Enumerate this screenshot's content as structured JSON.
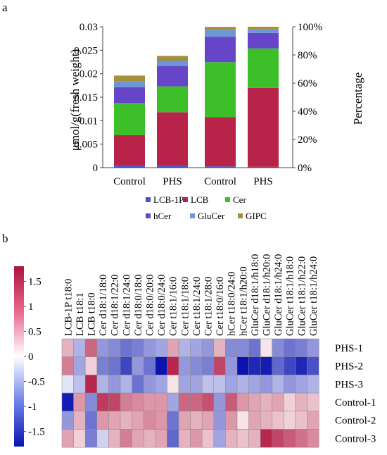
{
  "panel_labels": [
    "a",
    "b"
  ],
  "chart_data": [
    {
      "type": "bar",
      "stacked": true,
      "categories": [
        "Control",
        "PHS",
        "Control",
        "PHS"
      ],
      "ylabel": "μmol/g(fresh weight)",
      "ylabel_right": "Percentage",
      "ylim": [
        0,
        0.03
      ],
      "yticks": [
        "0",
        "0.005",
        "0.01",
        "0.015",
        "0.02",
        "0.025",
        "0.03"
      ],
      "yticks_right": [
        "0%",
        "20%",
        "40%",
        "60%",
        "80%",
        "100%"
      ],
      "axis_scale": {
        "left": "absolute (first pair)",
        "right": "percentage (second pair)"
      },
      "legend_position": "bottom",
      "series": [
        {
          "name": "LCB-1P",
          "color": "#4a52c4",
          "values": [
            0.0005,
            0.0005,
            0.9,
            0.6
          ]
        },
        {
          "name": "LCB",
          "color": "#b8234a",
          "values": [
            0.0064,
            0.0113,
            35.0,
            56.0
          ]
        },
        {
          "name": "Cer",
          "color": "#3dbf2a",
          "values": [
            0.0069,
            0.0055,
            39.0,
            28.0
          ]
        },
        {
          "name": "hCer",
          "color": "#6645c8",
          "values": [
            0.0033,
            0.0043,
            18.0,
            11.0
          ]
        },
        {
          "name": "GluCer",
          "color": "#6c96d4",
          "values": [
            0.0013,
            0.0012,
            5.0,
            2.5
          ]
        },
        {
          "name": "GIPC",
          "color": "#a58f3b",
          "values": [
            0.0012,
            0.001,
            2.0,
            1.9
          ]
        }
      ],
      "notes": "First two bars read on left axis; last two bars read on right (percentage) axis."
    },
    {
      "type": "heatmap",
      "columns": [
        "LCB-1P t18:0",
        "LCB t18:1",
        "LCB t18:0",
        "Cer d18:1/18:0",
        "Cer d18:1/22:0",
        "Cer d18:1/24:0",
        "Cer d18:0/18:0",
        "Cer d18:0/20:0",
        "Cer d18:0/24:0",
        "Cer t18:1/16:0",
        "Cer t18:1/18:0",
        "Cer t18:1/24:0",
        "Cer t18:1/28:0",
        "Cer t18:0/16:0",
        "hCer t18:0/24:0",
        "hCer t18:1/h20:0",
        "GluCer d18:1/h18:0",
        "GluCer d18:1/h20:0",
        "GluCer d18:1/h24:0",
        "GluCer t18:1/h18:0",
        "GluCer t18:1/h22:0",
        "GluCer t18:1/h24:0"
      ],
      "rows": [
        "PHS-1",
        "PHS-2",
        "PHS-3",
        "Control-1",
        "Control-2",
        "Control-3"
      ],
      "values": [
        [
          0.4,
          -0.4,
          1.0,
          -0.6,
          -0.7,
          -0.9,
          -0.8,
          -0.6,
          -0.5,
          0.5,
          -0.4,
          -0.5,
          -0.6,
          0.4,
          -0.7,
          -0.7,
          -0.9,
          0.1,
          -0.7,
          -0.9,
          -0.8,
          -0.6
        ],
        [
          0.8,
          -0.5,
          0.2,
          -0.8,
          -0.9,
          -1.3,
          -0.6,
          -0.9,
          -1.9,
          1.6,
          -0.6,
          -0.7,
          -0.8,
          1.3,
          -0.6,
          -1.9,
          -1.6,
          -1.7,
          -1.0,
          -1.3,
          -1.6,
          -1.2
        ],
        [
          -0.1,
          -0.3,
          1.6,
          -0.4,
          -0.6,
          -0.4,
          -0.9,
          -0.6,
          -0.5,
          0.1,
          -0.5,
          -0.5,
          -0.3,
          -0.3,
          -0.5,
          -0.4,
          -0.5,
          -0.6,
          -0.4,
          -0.6,
          -0.5,
          -0.4
        ],
        [
          -1.7,
          0.6,
          -0.7,
          1.4,
          1.3,
          0.8,
          0.7,
          0.6,
          0.6,
          -0.5,
          1.0,
          1.0,
          1.2,
          -0.6,
          1.1,
          0.6,
          0.5,
          0.4,
          0.5,
          0.2,
          0.4,
          0.3
        ],
        [
          -0.6,
          0.4,
          -0.9,
          0.6,
          0.5,
          0.4,
          0.5,
          0.7,
          0.6,
          -0.9,
          0.5,
          0.4,
          0.5,
          -0.6,
          0.6,
          0.1,
          0.5,
          0.4,
          0.3,
          0.2,
          0.3,
          0.5
        ],
        [
          0.5,
          0.2,
          -0.8,
          -0.2,
          0.4,
          0.8,
          0.5,
          0.4,
          0.5,
          -1.0,
          0.4,
          0.6,
          0.3,
          -0.5,
          0.4,
          0.3,
          0.4,
          1.6,
          1.3,
          1.1,
          0.9,
          0.7
        ]
      ],
      "colorbar": {
        "ticks": [
          "1.5",
          "1",
          "0.5",
          "0",
          "-0.5",
          "-1",
          "-1.5"
        ],
        "range": [
          -1.8,
          1.8
        ],
        "colors": {
          "low": "#0a13b0",
          "mid": "#ffffff",
          "high": "#b0123c"
        }
      }
    }
  ]
}
